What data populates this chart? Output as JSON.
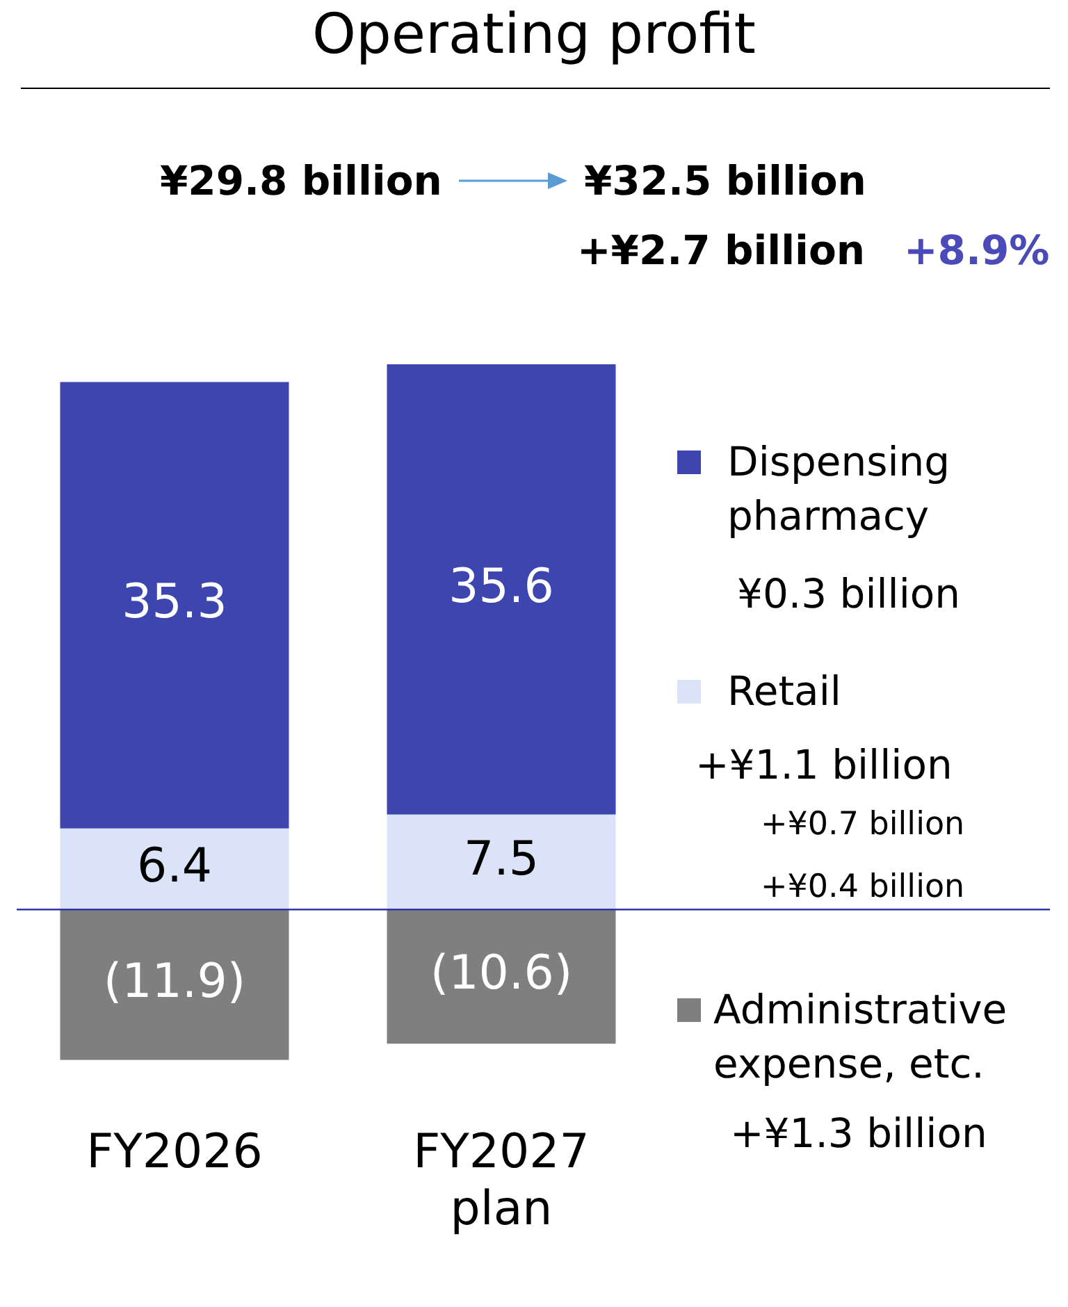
{
  "chart_data": {
    "type": "bar",
    "title": "Operating profit",
    "stacked": true,
    "legend": "right",
    "grid": false,
    "categories": [
      "FY2026",
      "FY2027 plan"
    ],
    "series": [
      {
        "name": "Retail",
        "color": "#dae3f8",
        "values": [
          6.4,
          7.5
        ],
        "value_labels": [
          "6.4",
          "7.5"
        ]
      },
      {
        "name": "Dispensing pharmacy",
        "color": "#3d46ae",
        "values": [
          35.3,
          35.6
        ],
        "value_labels": [
          "35.3",
          "35.6"
        ]
      },
      {
        "name": "Administrative expense, etc.",
        "color": "#7f7f7f",
        "values": [
          -11.9,
          -10.6
        ],
        "value_labels": [
          "(11.9)",
          "(10.6)"
        ]
      }
    ],
    "ref_lines": [
      {
        "axis": "y",
        "value": 0,
        "color": "#3333aa"
      }
    ],
    "annotations": [
      "¥29.8 billion",
      "¥32.5 billion",
      "+¥2.7 billion",
      "+8.9%",
      "¥0.3 billion",
      "+¥1.1 billion",
      "+¥0.7 billion",
      "+¥0.4 billion",
      "+¥1.3 billion"
    ]
  }
}
